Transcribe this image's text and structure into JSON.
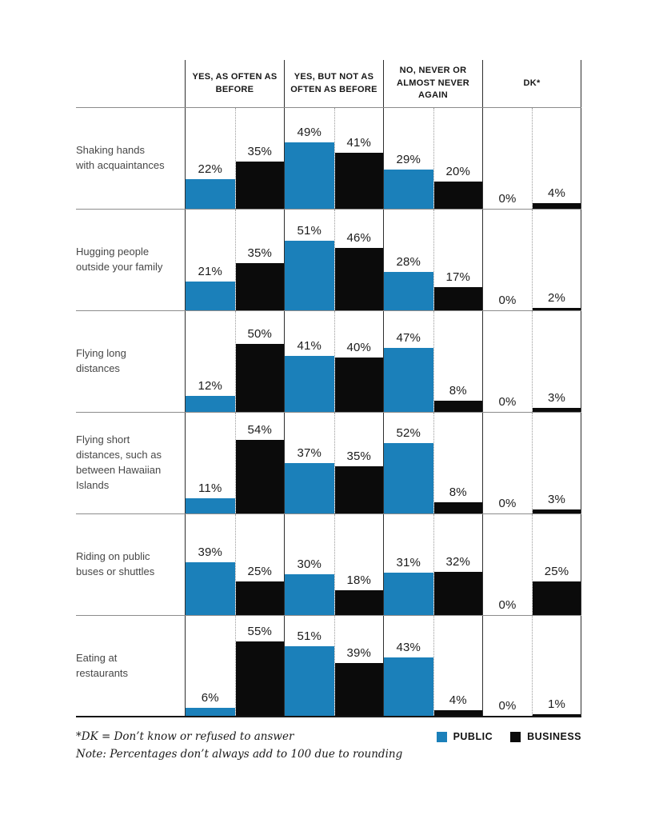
{
  "chart_data": {
    "type": "bar",
    "title": "",
    "unit": "%",
    "series_names": [
      "Public",
      "Business"
    ],
    "columns": [
      {
        "label": "YES, AS OFTEN AS BEFORE"
      },
      {
        "label": "YES, BUT NOT AS OFTEN AS BEFORE"
      },
      {
        "label": "NO, NEVER OR ALMOST NEVER AGAIN"
      },
      {
        "label": "DK*"
      }
    ],
    "rows": [
      {
        "label": "Shaking hands with acquaintances",
        "values": [
          [
            22,
            35
          ],
          [
            49,
            41
          ],
          [
            29,
            20
          ],
          [
            0,
            4
          ]
        ]
      },
      {
        "label": "Hugging people outside your family",
        "values": [
          [
            21,
            35
          ],
          [
            51,
            46
          ],
          [
            28,
            17
          ],
          [
            0,
            2
          ]
        ]
      },
      {
        "label": "Flying long distances",
        "values": [
          [
            12,
            50
          ],
          [
            41,
            40
          ],
          [
            47,
            8
          ],
          [
            0,
            3
          ]
        ]
      },
      {
        "label": "Flying short distances, such as between Hawaiian Islands",
        "values": [
          [
            11,
            54
          ],
          [
            37,
            35
          ],
          [
            52,
            8
          ],
          [
            0,
            3
          ]
        ]
      },
      {
        "label": "Riding on public buses or shuttles",
        "values": [
          [
            39,
            25
          ],
          [
            30,
            18
          ],
          [
            31,
            32
          ],
          [
            0,
            25
          ]
        ]
      },
      {
        "label": "Eating at restaurants",
        "values": [
          [
            6,
            55
          ],
          [
            51,
            39
          ],
          [
            43,
            4
          ],
          [
            0,
            1
          ]
        ]
      }
    ],
    "value_suffix": "%",
    "grid": "solid column separators, dotted series separators, gray row baselines",
    "legend_position": "bottom-right"
  },
  "legend": {
    "items": [
      {
        "label": "PUBLIC",
        "color": "#1b80ba"
      },
      {
        "label": "BUSINESS",
        "color": "#0b0b0b"
      }
    ]
  },
  "footnotes": [
    "*DK = Don’t know or refused to answer",
    "Note: Percentages don’t always add to 100 due to rounding"
  ],
  "colors": {
    "public": "#1b80ba",
    "business": "#0b0b0b"
  }
}
